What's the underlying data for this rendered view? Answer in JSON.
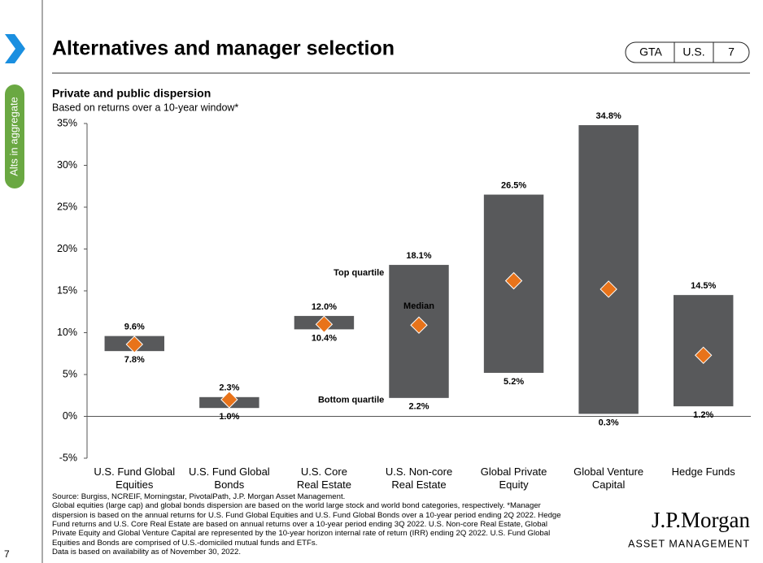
{
  "page": {
    "title": "Alternatives and manager selection",
    "tags": [
      "GTA",
      "U.S.",
      "7"
    ],
    "sidebar_label": "Alts in aggregate",
    "page_number": "7",
    "footnotes": [
      "Source: Burgiss, NCREIF, Morningstar, PivotalPath, J.P. Morgan Asset Management.",
      "Global equities (large cap) and global bonds dispersion are based on the world large stock and world bond categories, respectively. *Manager",
      "dispersion is based on the annual returns for U.S. Fund Global Equities and U.S. Fund Global Bonds over a 10-year period ending 2Q 2022. Hedge",
      "Fund returns and U.S. Core Real Estate are based on annual returns over a 10-year period ending 3Q 2022.  U.S. Non-core Real Estate, Global",
      "Private Equity and Global Venture Capital are represented by the 10-year horizon internal rate of return (IRR) ending 2Q 2022. U.S. Fund Global",
      "Equities and Bonds are comprised of U.S.-domiciled mutual funds and ETFs.",
      "Data is based on availability as of November 30, 2022."
    ],
    "logo": {
      "name": "J.P.Morgan",
      "subtitle": "ASSET MANAGEMENT"
    }
  },
  "chart_data": {
    "type": "range",
    "title": "Private and public dispersion",
    "subtitle": "Based on returns over a 10-year window*",
    "categories": [
      "U.S. Fund Global\nEquities",
      "U.S. Fund Global\nBonds",
      "U.S. Core\nReal Estate",
      "U.S. Non-core\nReal Estate",
      "Global Private\nEquity",
      "Global Venture\nCapital",
      "Hedge Funds"
    ],
    "series": [
      {
        "name": "Top quartile",
        "color": "#58595b",
        "values": [
          9.6,
          2.3,
          12.0,
          18.1,
          26.5,
          34.8,
          14.5
        ],
        "value_labels": [
          "9.6%",
          "2.3%",
          "12.0%",
          "18.1%",
          "26.5%",
          "34.8%",
          "14.5%"
        ]
      },
      {
        "name": "Bottom quartile",
        "color": "#58595b",
        "values": [
          7.8,
          1.0,
          10.4,
          2.2,
          5.2,
          0.3,
          1.2
        ],
        "value_labels": [
          "7.8%",
          "1.0%",
          "10.4%",
          "2.2%",
          "5.2%",
          "0.3%",
          "1.2%"
        ]
      },
      {
        "name": "Median",
        "color": "#e8731a",
        "values": [
          8.6,
          2.0,
          11.0,
          10.9,
          16.2,
          15.2,
          7.3
        ]
      }
    ],
    "ylim": [
      -5,
      35
    ],
    "yticks": [
      {
        "value": -5,
        "label": "-5%"
      },
      {
        "value": 0,
        "label": "0%"
      },
      {
        "value": 5,
        "label": "5%"
      },
      {
        "value": 10,
        "label": "10%"
      },
      {
        "value": 15,
        "label": "15%"
      },
      {
        "value": 20,
        "label": "20%"
      },
      {
        "value": 25,
        "label": "25%"
      },
      {
        "value": 30,
        "label": "30%"
      },
      {
        "value": 35,
        "label": "35%"
      }
    ]
  }
}
